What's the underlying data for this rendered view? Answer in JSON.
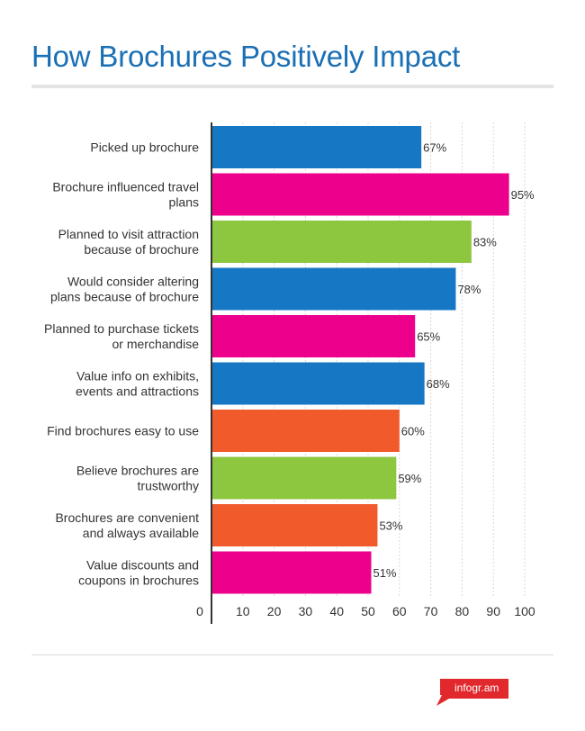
{
  "title": "How Brochures Positively Impact",
  "brand": "infogr.am",
  "chart_data": {
    "type": "bar",
    "orientation": "horizontal",
    "title": "How Brochures Positively Impact",
    "categories": [
      "Picked up brochure",
      "Brochure influenced travel plans",
      "Planned to visit attraction because of brochure",
      "Would consider altering plans because of brochure",
      "Planned to purchase tickets or merchandise",
      "Value info on exhibits, events and attractions",
      "Find brochures easy to use",
      "Believe brochures are trustworthy",
      "Brochures are convenient and always available",
      "Value discounts and coupons in brochures"
    ],
    "category_lines": [
      [
        "Picked up brochure"
      ],
      [
        "Brochure influenced travel",
        "plans"
      ],
      [
        "Planned to visit attraction",
        "because of brochure"
      ],
      [
        "Would consider altering",
        "plans because of brochure"
      ],
      [
        "Planned to purchase tickets",
        "or merchandise"
      ],
      [
        "Value info on exhibits,",
        "events and attractions"
      ],
      [
        "Find brochures easy to use"
      ],
      [
        "Believe brochures are",
        "trustworthy"
      ],
      [
        "Brochures are convenient",
        "and always available"
      ],
      [
        "Value discounts and",
        "coupons in brochures"
      ]
    ],
    "values": [
      67,
      95,
      83,
      78,
      65,
      68,
      60,
      59,
      53,
      51
    ],
    "value_labels": [
      "67%",
      "95%",
      "83%",
      "78%",
      "65%",
      "68%",
      "60%",
      "59%",
      "53%",
      "51%"
    ],
    "colors": [
      "#1677c4",
      "#ec008c",
      "#8dc63f",
      "#1677c4",
      "#ec008c",
      "#1677c4",
      "#f15a2b",
      "#8dc63f",
      "#f15a2b",
      "#ec008c"
    ],
    "xlim": [
      0,
      100
    ],
    "xticks": [
      0,
      10,
      20,
      30,
      40,
      50,
      60,
      70,
      80,
      90,
      100
    ],
    "xtick_labels": [
      "0",
      "10",
      "20",
      "30",
      "40",
      "50",
      "60",
      "70",
      "80",
      "90",
      "100"
    ],
    "grid": true
  }
}
